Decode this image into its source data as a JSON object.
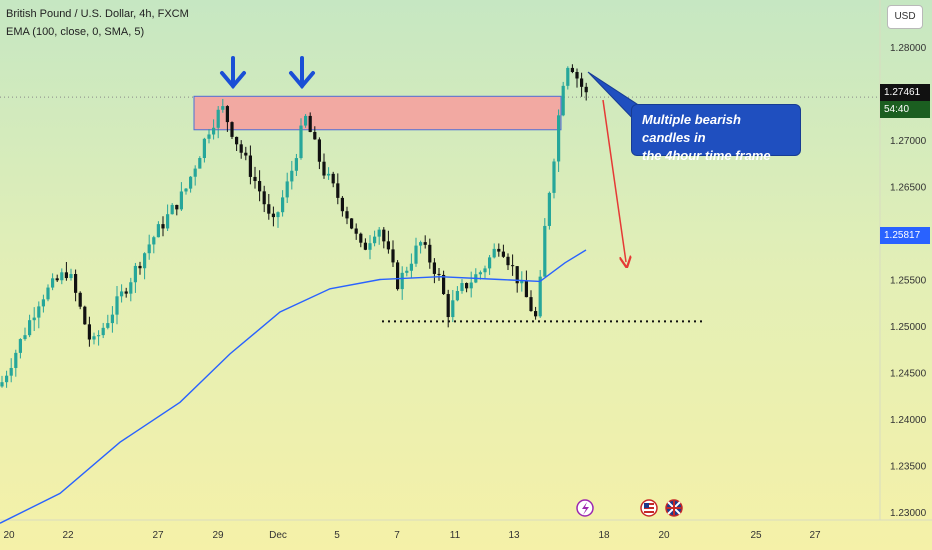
{
  "header": {
    "symbol_line": "British Pound / U.S. Dollar, 4h, FXCM",
    "indicator_line": "EMA (100, close, 0, SMA, 5)",
    "currency_button": "USD"
  },
  "annotation": {
    "line1": "Multiple bearish candles in",
    "line2": "the 4hour time frame"
  },
  "current_price": {
    "value": "1.27461",
    "countdown": "54:40"
  },
  "ema_value": "1.25817",
  "colors": {
    "bull": "#26a69a",
    "bear": "#111111",
    "ema_line": "#2962ff",
    "resistance_zone": "#f2a9a2",
    "arrow_down": "#1a4fd6",
    "target_arrow": "#e53935",
    "callout_bg": "#1f4fbf"
  },
  "icons": [
    "lightning-icon",
    "us-flag-icon",
    "uk-flag-icon"
  ],
  "chart_data": {
    "type": "candlestick",
    "timeframe": "4h",
    "y_axis": {
      "range": [
        1.2255,
        1.2825
      ],
      "ticks": [
        "1.28000",
        "1.27500",
        "1.27000",
        "1.26500",
        "1.26000",
        "1.25500",
        "1.25000",
        "1.24500",
        "1.24000",
        "1.23500",
        "1.23000"
      ],
      "tick_values": [
        1.28,
        1.275,
        1.27,
        1.265,
        1.26,
        1.255,
        1.25,
        1.245,
        1.24,
        1.235,
        1.23
      ]
    },
    "x_axis": {
      "ticks": [
        "20",
        "22",
        "27",
        "29",
        "Dec",
        "5",
        "7",
        "11",
        "13",
        "18",
        "20",
        "25",
        "27"
      ]
    },
    "resistance_zone": {
      "top": 1.2747,
      "bottom": 1.2711
    },
    "support_level": 1.2505,
    "ema_series": {
      "name": "EMA (100, close, 0, SMA, 5)",
      "last_value": 1.25817
    },
    "anchors": {
      "zone_top_left": 1.2747,
      "target": 1.2545
    }
  }
}
